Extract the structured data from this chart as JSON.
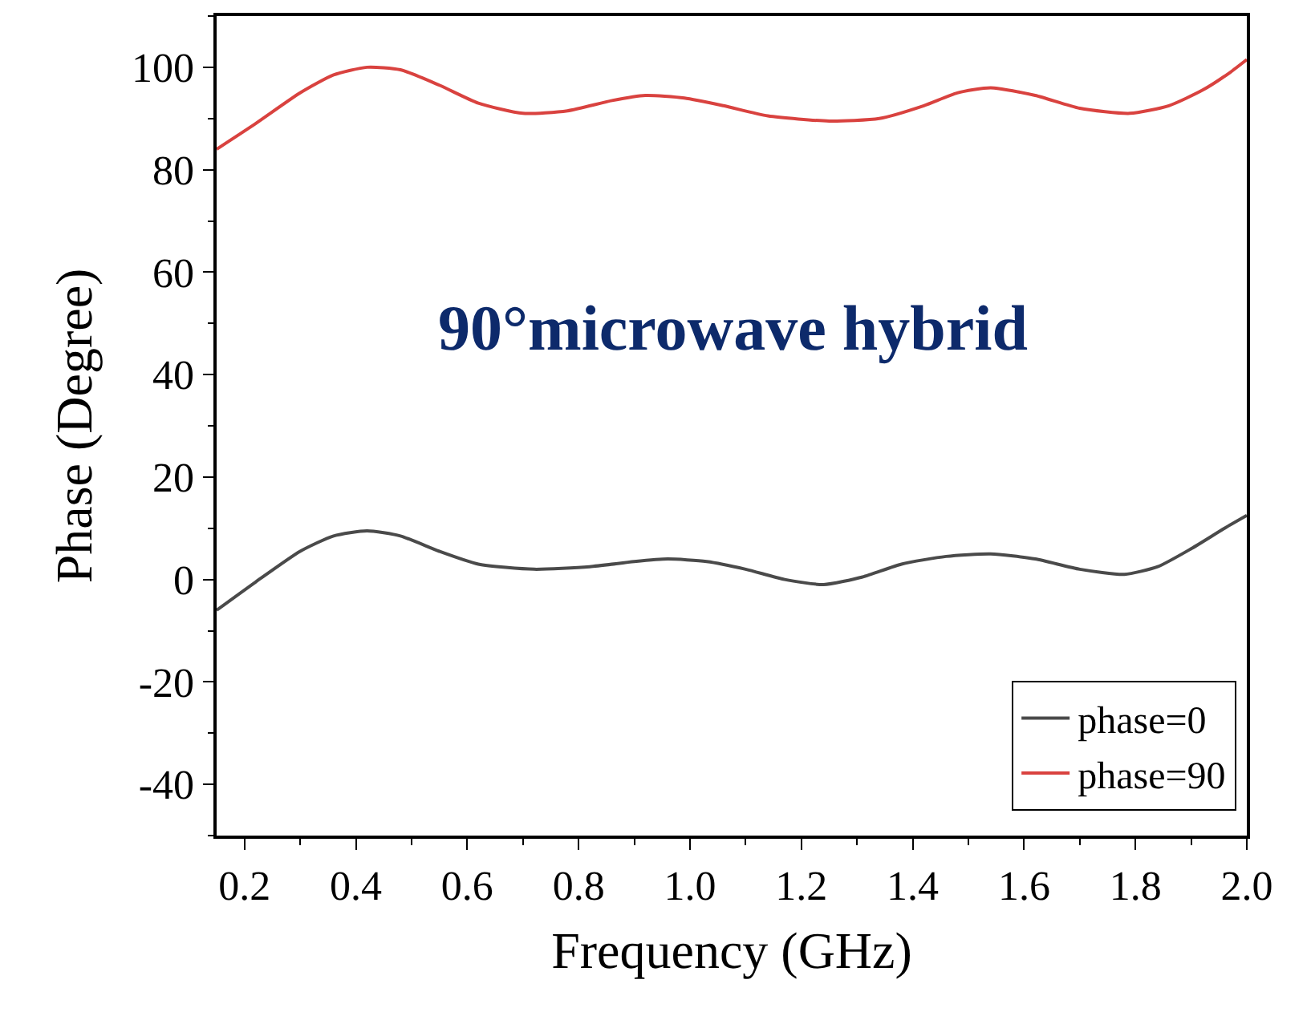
{
  "chart_data": {
    "type": "line",
    "xlabel": "Frequency (GHz)",
    "ylabel": "Phase (Degree)",
    "annotations": [
      "90°microwave hybrid"
    ],
    "xlim": [
      0.15,
      2.0
    ],
    "xticks": [
      {
        "value": 0.2,
        "label": "0.2"
      },
      {
        "value": 0.4,
        "label": "0.4"
      },
      {
        "value": 0.6,
        "label": "0.6"
      },
      {
        "value": 0.8,
        "label": "0.8"
      },
      {
        "value": 1.0,
        "label": "1.0"
      },
      {
        "value": 1.2,
        "label": "1.2"
      },
      {
        "value": 1.4,
        "label": "1.4"
      },
      {
        "value": 1.6,
        "label": "1.6"
      },
      {
        "value": 1.8,
        "label": "1.8"
      },
      {
        "value": 2.0,
        "label": "2.0"
      }
    ],
    "ylim": [
      -50,
      110
    ],
    "yticks": [
      -40,
      -20,
      0,
      20,
      40,
      60,
      80,
      100
    ],
    "legend": "bottom right",
    "line_style": "solid",
    "marker": "none",
    "series": [
      {
        "name": "phase=0",
        "color": "#4a4a4a",
        "x": [
          0.15,
          0.22,
          0.3,
          0.36,
          0.42,
          0.48,
          0.55,
          0.62,
          0.72,
          0.82,
          0.9,
          0.96,
          1.03,
          1.1,
          1.17,
          1.24,
          1.31,
          1.38,
          1.46,
          1.54,
          1.62,
          1.7,
          1.78,
          1.84,
          1.9,
          1.96,
          2.0
        ],
        "values": [
          -6,
          -0.5,
          5.5,
          8.5,
          9.5,
          8.5,
          5.5,
          3,
          2,
          2.5,
          3.5,
          4,
          3.5,
          2,
          0,
          -1,
          0.5,
          3,
          4.5,
          5,
          4,
          2,
          1,
          2.5,
          6,
          10,
          12.5
        ]
      },
      {
        "name": "phase=90",
        "color": "#d9423f",
        "x": [
          0.15,
          0.22,
          0.3,
          0.36,
          0.42,
          0.48,
          0.55,
          0.62,
          0.7,
          0.78,
          0.86,
          0.92,
          0.99,
          1.06,
          1.14,
          1.25,
          1.34,
          1.42,
          1.48,
          1.54,
          1.62,
          1.7,
          1.79,
          1.86,
          1.92,
          1.97,
          2.0
        ],
        "values": [
          84,
          89,
          95,
          98.5,
          100,
          99.5,
          96.5,
          93,
          91,
          91.5,
          93.5,
          94.5,
          94,
          92.5,
          90.5,
          89.5,
          90,
          92.5,
          95,
          96,
          94.5,
          92,
          91,
          92.5,
          95.5,
          99,
          101.5
        ]
      }
    ]
  }
}
